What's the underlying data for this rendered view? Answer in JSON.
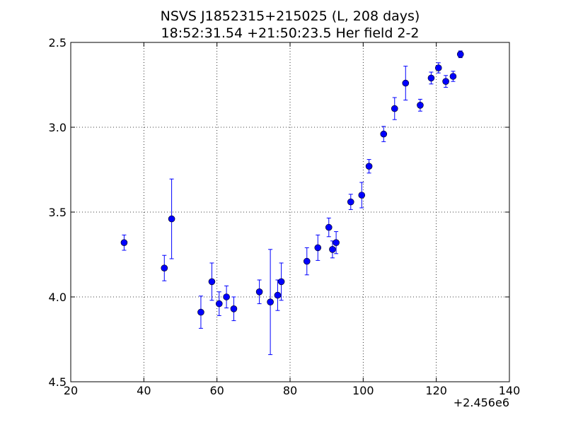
{
  "chart_data": {
    "type": "scatter",
    "title_line1": "NSVS J1852315+215025 (L, 208 days)",
    "title_line2": "18:52:31.54 +21:50:23.5 Her field 2-2",
    "xlabel": "",
    "ylabel": "",
    "x_offset_label": "+2.456e6",
    "xlim": [
      20,
      140
    ],
    "ylim": [
      4.5,
      2.5
    ],
    "y_inverted": true,
    "x_ticks": [
      20,
      40,
      60,
      80,
      100,
      120,
      140
    ],
    "x_tick_labels": [
      "20",
      "40",
      "60",
      "80",
      "100",
      "120",
      "140"
    ],
    "y_ticks": [
      2.5,
      3.0,
      3.5,
      4.0,
      4.5
    ],
    "y_tick_labels": [
      "2.5",
      "3.0",
      "3.5",
      "4.0",
      "4.5"
    ],
    "grid": true,
    "marker_color": "#0000ff",
    "points": [
      {
        "x": 34.6,
        "y": 3.68,
        "err": 0.045
      },
      {
        "x": 45.6,
        "y": 3.83,
        "err": 0.075
      },
      {
        "x": 47.6,
        "y": 3.54,
        "err": 0.235
      },
      {
        "x": 55.6,
        "y": 4.09,
        "err": 0.095
      },
      {
        "x": 58.6,
        "y": 3.91,
        "err": 0.11
      },
      {
        "x": 60.6,
        "y": 4.04,
        "err": 0.07
      },
      {
        "x": 62.6,
        "y": 4.0,
        "err": 0.065
      },
      {
        "x": 64.6,
        "y": 4.07,
        "err": 0.07
      },
      {
        "x": 71.6,
        "y": 3.97,
        "err": 0.07
      },
      {
        "x": 74.6,
        "y": 4.03,
        "err": 0.31
      },
      {
        "x": 76.6,
        "y": 3.99,
        "err": 0.09
      },
      {
        "x": 77.6,
        "y": 3.91,
        "err": 0.11
      },
      {
        "x": 84.6,
        "y": 3.79,
        "err": 0.08
      },
      {
        "x": 87.6,
        "y": 3.71,
        "err": 0.075
      },
      {
        "x": 90.6,
        "y": 3.59,
        "err": 0.055
      },
      {
        "x": 91.6,
        "y": 3.72,
        "err": 0.05
      },
      {
        "x": 92.6,
        "y": 3.68,
        "err": 0.065
      },
      {
        "x": 96.6,
        "y": 3.44,
        "err": 0.045
      },
      {
        "x": 99.6,
        "y": 3.4,
        "err": 0.075
      },
      {
        "x": 101.6,
        "y": 3.23,
        "err": 0.04
      },
      {
        "x": 105.6,
        "y": 3.04,
        "err": 0.045
      },
      {
        "x": 108.6,
        "y": 2.89,
        "err": 0.065
      },
      {
        "x": 111.6,
        "y": 2.74,
        "err": 0.1
      },
      {
        "x": 115.6,
        "y": 2.87,
        "err": 0.035
      },
      {
        "x": 118.6,
        "y": 2.71,
        "err": 0.035
      },
      {
        "x": 120.6,
        "y": 2.65,
        "err": 0.03
      },
      {
        "x": 122.6,
        "y": 2.73,
        "err": 0.035
      },
      {
        "x": 124.6,
        "y": 2.7,
        "err": 0.03
      },
      {
        "x": 126.6,
        "y": 2.57,
        "err": 0.02
      }
    ]
  }
}
